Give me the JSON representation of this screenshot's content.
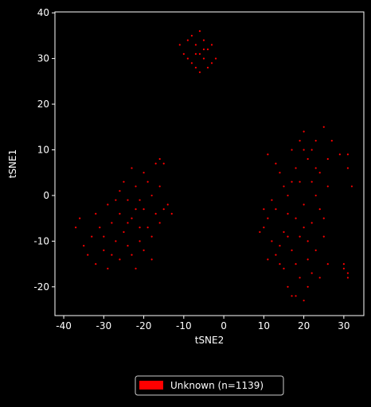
{
  "chart_data": {
    "type": "scatter",
    "xlabel": "tSNE2",
    "ylabel": "tSNE1",
    "xlim": [
      -42.2,
      35
    ],
    "ylim": [
      -26.3,
      40.2
    ],
    "xticks": [
      -40,
      -30,
      -20,
      -10,
      0,
      10,
      20,
      30
    ],
    "yticks": [
      -20,
      -10,
      0,
      10,
      20,
      30,
      40
    ],
    "x": [
      -6,
      -7,
      -5,
      -8,
      -4,
      -9,
      -6,
      -3,
      -7,
      -10,
      -5,
      -2,
      -8,
      -4,
      -6,
      -9,
      -3,
      -7,
      -5,
      -11,
      -23,
      -20,
      -25,
      -18,
      -22,
      -27,
      -30,
      -24,
      -19,
      -21,
      -26,
      -28,
      -17,
      -16,
      -15,
      -20,
      -23,
      -25,
      -29,
      -31,
      -33,
      -35,
      -37,
      -36,
      -34,
      -32,
      -29,
      -26,
      -23,
      -20,
      -22,
      -18,
      -16,
      -14,
      -13,
      -21,
      -24,
      -27,
      -26,
      -19,
      -17,
      -16,
      -15,
      -28,
      -30,
      -32,
      -24,
      -21,
      -18,
      -22,
      18,
      15,
      20,
      13,
      17,
      21,
      14,
      19,
      22,
      24,
      12,
      10,
      16,
      19,
      21,
      23,
      20,
      25,
      22,
      24,
      26,
      18,
      17,
      19,
      13,
      11,
      14,
      12,
      16,
      23,
      25,
      26,
      22,
      18,
      17,
      20,
      16,
      15,
      11,
      9,
      10,
      14,
      20,
      23,
      25,
      26,
      27,
      21,
      19,
      17,
      15,
      13,
      11,
      24,
      22,
      21,
      16,
      18,
      20,
      23,
      29,
      31,
      31,
      32,
      30,
      31,
      31,
      30
    ],
    "series": [
      {
        "name": "Unknown (n=1139)",
        "color": "#ff0000",
        "values": [
          31,
          33,
          30,
          29,
          32,
          34,
          36,
          29,
          28,
          31,
          34,
          30,
          35,
          28,
          27,
          30,
          33,
          31,
          32,
          33,
          -5,
          -3,
          -8,
          0,
          2,
          -10,
          -12,
          -1,
          -7,
          -10,
          -4,
          -6,
          -4,
          2,
          -3,
          5,
          6,
          3,
          -2,
          -7,
          -9,
          -11,
          -7,
          -5,
          -13,
          -15,
          -16,
          -14,
          -13,
          -12,
          -16,
          -9,
          -6,
          -2,
          -4,
          -1,
          -6,
          -1,
          1,
          3,
          7,
          8,
          7,
          -13,
          -9,
          -4,
          -11,
          -7,
          -14,
          -3,
          -5,
          -8,
          -2,
          -3,
          -12,
          -10,
          -15,
          -18,
          -6,
          -3,
          -10,
          -7,
          0,
          3,
          8,
          12,
          14,
          15,
          10,
          5,
          2,
          6,
          10,
          12,
          7,
          9,
          5,
          -1,
          -4,
          -12,
          -9,
          -15,
          -17,
          -22,
          -22,
          -23,
          -20,
          -16,
          -5,
          -8,
          -3,
          -11,
          -7,
          0,
          -5,
          8,
          12,
          -14,
          -9,
          3,
          2,
          -13,
          -14,
          -18,
          3,
          -20,
          -9,
          -15,
          10,
          6,
          9,
          9,
          6,
          2,
          -15,
          -17,
          -18,
          -16
        ]
      }
    ],
    "legend": "lower center",
    "background": "#000000",
    "foreground": "#ffffff"
  }
}
